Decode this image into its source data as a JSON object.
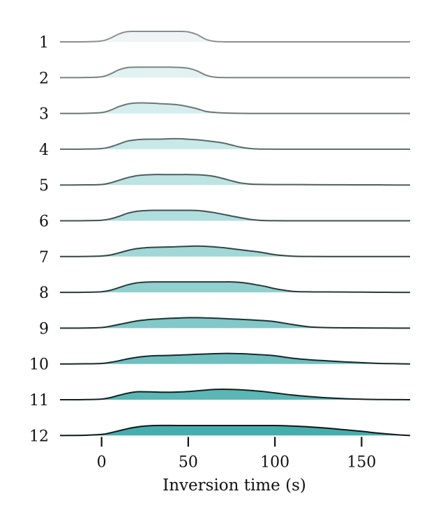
{
  "chart_data": {
    "type": "ridgeline",
    "xlabel": "Inversion time (s)",
    "xlim": [
      -24,
      178
    ],
    "xticks": [
      0,
      50,
      100,
      150
    ],
    "xtick_labels": [
      "0",
      "50",
      "100",
      "150"
    ],
    "row_labels": [
      "1",
      "2",
      "3",
      "4",
      "5",
      "6",
      "7",
      "8",
      "9",
      "10",
      "11",
      "12"
    ],
    "grid": false,
    "line_colors": [
      "#8a8f8f",
      "#7a8383",
      "#6b7676",
      "#5a6a6a",
      "#4d5d5d",
      "#3f5050",
      "#334444",
      "#283a3a",
      "#1f3131",
      "#172828",
      "#112020",
      "#0c1818"
    ],
    "fill_colors": [
      "#eef5f5",
      "#e2f1f1",
      "#d6eded",
      "#c9e8e8",
      "#bde3e3",
      "#b0dede",
      "#a2d7d7",
      "#92d0d0",
      "#82c8c8",
      "#6fbfbf",
      "#5bb6b6",
      "#46adad"
    ],
    "x": [
      -24,
      -20,
      -10,
      0,
      5,
      10,
      15,
      20,
      25,
      30,
      35,
      40,
      45,
      50,
      55,
      60,
      65,
      70,
      75,
      80,
      85,
      90,
      95,
      100,
      110,
      120,
      130,
      140,
      150,
      160,
      170,
      178
    ],
    "series": [
      {
        "label": "1",
        "values": [
          0,
          0,
          0.005,
          0.08,
          0.35,
          0.75,
          0.98,
          1,
          1,
          1,
          1,
          1,
          1,
          0.95,
          0.7,
          0.25,
          0.05,
          0.01,
          0,
          0,
          0,
          0,
          0,
          0,
          0,
          0,
          0,
          0,
          0,
          0,
          0,
          0
        ]
      },
      {
        "label": "2",
        "values": [
          0,
          0,
          0.01,
          0.08,
          0.35,
          0.75,
          0.97,
          1,
          1,
          1,
          1,
          1,
          0.98,
          0.9,
          0.65,
          0.25,
          0.05,
          0.01,
          0,
          0,
          0,
          0,
          0,
          0,
          0,
          0,
          0,
          0,
          0,
          0,
          0,
          0
        ]
      },
      {
        "label": "3",
        "values": [
          0,
          0,
          0.01,
          0.08,
          0.3,
          0.65,
          0.9,
          1,
          1,
          0.97,
          0.92,
          0.88,
          0.8,
          0.65,
          0.45,
          0.2,
          0.1,
          0.05,
          0.02,
          0.01,
          0,
          0,
          0,
          0,
          0,
          0,
          0,
          0,
          0,
          0,
          0,
          0
        ]
      },
      {
        "label": "4",
        "values": [
          0,
          0,
          0.01,
          0.06,
          0.22,
          0.5,
          0.78,
          0.9,
          0.95,
          0.96,
          0.97,
          1,
          1,
          0.95,
          0.9,
          0.82,
          0.72,
          0.6,
          0.4,
          0.2,
          0.08,
          0.02,
          0.01,
          0,
          0,
          0,
          0,
          0,
          0,
          0,
          0,
          0
        ]
      },
      {
        "label": "5",
        "values": [
          0,
          0,
          0.01,
          0.05,
          0.2,
          0.45,
          0.7,
          0.88,
          0.96,
          1,
          1,
          1,
          1,
          1,
          0.98,
          0.93,
          0.82,
          0.62,
          0.4,
          0.2,
          0.1,
          0.06,
          0.05,
          0.04,
          0.04,
          0.03,
          0.02,
          0.02,
          0.01,
          0.01,
          0,
          0
        ]
      },
      {
        "label": "6",
        "values": [
          0,
          0,
          0.01,
          0.05,
          0.18,
          0.42,
          0.72,
          0.9,
          0.97,
          1,
          1,
          1,
          1,
          1,
          0.98,
          0.9,
          0.78,
          0.62,
          0.45,
          0.3,
          0.15,
          0.06,
          0.02,
          0.01,
          0,
          0,
          0,
          0,
          0,
          0,
          0,
          0
        ]
      },
      {
        "label": "7",
        "values": [
          0,
          0,
          0.01,
          0.05,
          0.15,
          0.35,
          0.58,
          0.75,
          0.84,
          0.88,
          0.9,
          0.92,
          0.95,
          0.98,
          1,
          0.98,
          0.93,
          0.85,
          0.75,
          0.65,
          0.55,
          0.45,
          0.32,
          0.18,
          0.04,
          0.01,
          0,
          0,
          0,
          0,
          0,
          0
        ]
      },
      {
        "label": "8",
        "values": [
          0,
          0,
          0.01,
          0.06,
          0.2,
          0.45,
          0.72,
          0.9,
          0.97,
          1,
          1,
          1,
          1,
          1,
          1,
          1,
          1,
          1,
          1,
          0.95,
          0.85,
          0.7,
          0.55,
          0.35,
          0.1,
          0.05,
          0.04,
          0.03,
          0.02,
          0.01,
          0,
          0
        ]
      },
      {
        "label": "9",
        "values": [
          0,
          0,
          0.01,
          0.06,
          0.18,
          0.35,
          0.52,
          0.68,
          0.78,
          0.85,
          0.9,
          0.94,
          0.97,
          1,
          1,
          0.98,
          0.95,
          0.92,
          0.88,
          0.84,
          0.8,
          0.75,
          0.7,
          0.62,
          0.35,
          0.12,
          0.05,
          0.03,
          0.02,
          0.01,
          0,
          0
        ]
      },
      {
        "label": "10",
        "values": [
          0,
          0,
          0.01,
          0.05,
          0.15,
          0.3,
          0.48,
          0.62,
          0.72,
          0.78,
          0.8,
          0.82,
          0.85,
          0.88,
          0.92,
          0.95,
          0.98,
          1,
          1,
          0.98,
          0.95,
          0.9,
          0.85,
          0.78,
          0.55,
          0.4,
          0.3,
          0.2,
          0.12,
          0.05,
          0.02,
          0
        ]
      },
      {
        "label": "11",
        "values": [
          0,
          0,
          0.01,
          0.06,
          0.2,
          0.42,
          0.62,
          0.75,
          0.76,
          0.74,
          0.72,
          0.72,
          0.74,
          0.78,
          0.85,
          0.92,
          0.98,
          1,
          0.98,
          0.95,
          0.9,
          0.83,
          0.75,
          0.65,
          0.45,
          0.3,
          0.18,
          0.1,
          0.05,
          0.02,
          0.01,
          0
        ]
      },
      {
        "label": "12",
        "values": [
          0,
          0,
          0.02,
          0.1,
          0.25,
          0.45,
          0.65,
          0.8,
          0.9,
          0.95,
          0.96,
          0.96,
          0.95,
          0.95,
          0.95,
          0.95,
          0.95,
          0.95,
          0.95,
          0.95,
          0.95,
          0.95,
          0.95,
          0.95,
          0.9,
          0.82,
          0.7,
          0.55,
          0.4,
          0.22,
          0.08,
          0
        ]
      }
    ]
  }
}
